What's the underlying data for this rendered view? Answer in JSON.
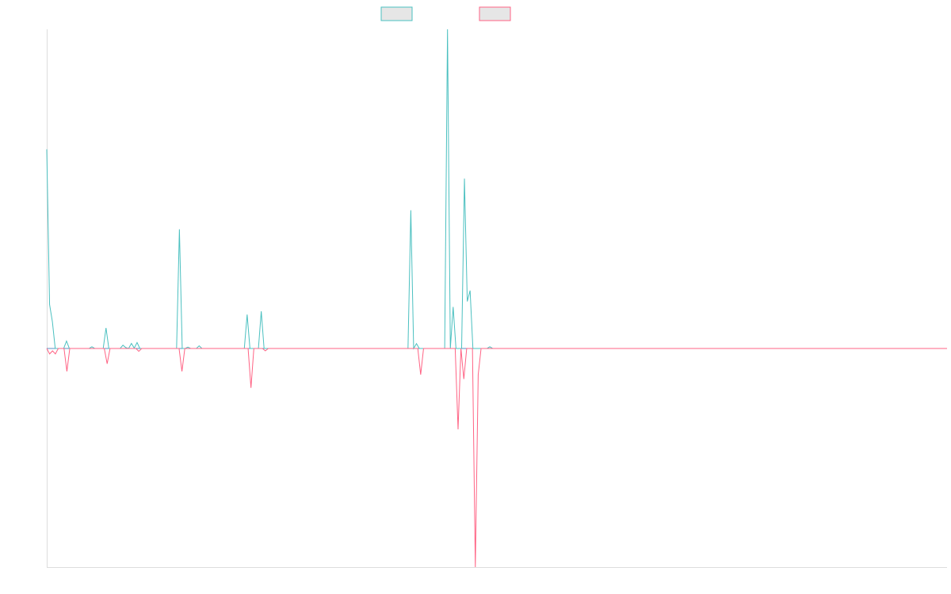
{
  "chart_data": {
    "type": "line",
    "title": "",
    "xlabel": "",
    "ylabel": "",
    "ylim": [
      -1,
      1.46
    ],
    "grid": false,
    "legend_position": "top-center",
    "colors": {
      "positive": "#4bc0c0",
      "negative": "#ff6384",
      "axis": "#dddddd",
      "baseline": "#5a8fc6",
      "legend_fill": "#e6e6e6"
    },
    "series": [
      {
        "values": [
          0.911,
          0.201,
          0.122,
          0,
          0,
          0,
          0,
          0.034,
          0,
          0,
          0,
          0,
          0,
          0,
          0,
          0,
          0.008,
          0,
          0,
          0,
          0,
          0.094,
          0,
          0,
          0,
          0,
          0,
          0.015,
          0.004,
          0,
          0.023,
          0.002,
          0.027,
          0,
          0,
          0,
          0,
          0,
          0,
          0,
          0,
          0,
          0,
          0,
          0,
          0,
          0,
          0.545,
          0,
          0,
          0.006,
          0,
          0,
          0,
          0.012,
          0,
          0,
          0,
          0,
          0,
          0,
          0,
          0,
          0,
          0,
          0,
          0,
          0,
          0,
          0,
          0,
          0.155,
          0,
          0,
          0,
          0,
          0.17,
          0,
          0,
          0,
          0,
          0,
          0,
          0,
          0,
          0,
          0,
          0,
          0,
          0,
          0,
          0,
          0,
          0,
          0,
          0,
          0,
          0,
          0,
          0,
          0,
          0,
          0,
          0,
          0,
          0,
          0,
          0,
          0,
          0,
          0,
          0,
          0,
          0,
          0,
          0,
          0,
          0,
          0,
          0,
          0,
          0,
          0,
          0,
          0,
          0,
          0,
          0,
          0,
          0.632,
          0,
          0.022,
          0,
          0,
          0,
          0,
          0,
          0,
          0,
          0,
          0,
          0,
          1.46,
          0,
          0.19,
          0,
          0,
          0,
          0.777,
          0.215,
          0.265,
          0,
          0,
          0,
          0,
          0,
          0,
          0.008,
          0,
          0,
          0,
          0,
          0,
          0,
          0,
          0,
          0,
          0,
          0,
          0,
          0,
          0,
          0,
          0,
          0,
          0,
          0,
          0,
          0,
          0,
          0,
          0,
          0,
          0,
          0,
          0,
          0,
          0,
          0,
          0,
          0,
          0,
          0,
          0,
          0,
          0,
          0,
          0,
          0,
          0,
          0,
          0,
          0,
          0,
          0,
          0,
          0,
          0,
          0,
          0,
          0,
          0,
          0,
          0,
          0,
          0,
          0,
          0,
          0,
          0,
          0,
          0,
          0,
          0,
          0,
          0,
          0,
          0,
          0,
          0,
          0,
          0,
          0,
          0,
          0,
          0,
          0,
          0,
          0,
          0,
          0,
          0,
          0,
          0,
          0,
          0,
          0,
          0,
          0,
          0,
          0,
          0,
          0,
          0,
          0,
          0,
          0,
          0,
          0,
          0,
          0,
          0,
          0,
          0,
          0,
          0,
          0,
          0,
          0,
          0,
          0,
          0,
          0,
          0,
          0,
          0,
          0,
          0,
          0,
          0,
          0,
          0,
          0,
          0,
          0,
          0,
          0,
          0,
          0,
          0,
          0,
          0,
          0,
          0,
          0,
          0,
          0,
          0,
          0,
          0,
          0,
          0,
          0,
          0,
          0,
          0,
          0,
          0,
          0,
          0,
          0,
          0,
          0,
          0,
          0,
          0,
          0,
          0,
          0,
          0
        ]
      },
      {
        "values": [
          0,
          -0.025,
          -0.011,
          -0.025,
          0,
          0,
          0,
          -0.105,
          0,
          0,
          0,
          0,
          0,
          0,
          0,
          0,
          0,
          0,
          0,
          0,
          0,
          -0.07,
          0,
          0,
          0,
          0,
          0,
          0,
          0,
          0,
          0,
          0,
          -0.013,
          0,
          0,
          0,
          0,
          0,
          0,
          0,
          0,
          0,
          0,
          0,
          0,
          0,
          0,
          -0.105,
          0,
          0,
          0,
          0,
          0,
          0,
          0,
          0,
          0,
          0,
          0,
          0,
          0,
          0,
          0,
          0,
          0,
          0,
          0,
          0,
          0,
          0,
          0,
          -0.18,
          0,
          0,
          0,
          0,
          -0.011,
          0,
          0,
          0,
          0,
          0,
          0,
          0,
          0,
          0,
          0,
          0,
          0,
          0,
          0,
          0,
          0,
          0,
          0,
          0,
          0,
          0,
          0,
          0,
          0,
          0,
          0,
          0,
          0,
          0,
          0,
          0,
          0,
          0,
          0,
          0,
          0,
          0,
          0,
          0,
          0,
          0,
          0,
          0,
          0,
          0,
          0,
          0,
          0,
          0,
          0,
          0,
          0,
          0,
          -0.12,
          0,
          0,
          0,
          0,
          0,
          0,
          0,
          0,
          0,
          0,
          0,
          0,
          -0.37,
          0,
          -0.14,
          0,
          0,
          0,
          -1.0,
          -0.12,
          0,
          0,
          0,
          0,
          0,
          0,
          0,
          0,
          0,
          0,
          0,
          0,
          0,
          0,
          0,
          0,
          0,
          0,
          0,
          0,
          0,
          0,
          0,
          0,
          0,
          0,
          0,
          0,
          0,
          0,
          0,
          0,
          0,
          0,
          0,
          0,
          0,
          0,
          0,
          0,
          0,
          0,
          0,
          0,
          0,
          0,
          0,
          0,
          0,
          0,
          0,
          0,
          0,
          0,
          0,
          0,
          0,
          0,
          0,
          0,
          0,
          0,
          0,
          0,
          0,
          0,
          0,
          0,
          0,
          0,
          0,
          0,
          0,
          0,
          0,
          0,
          0,
          0,
          0,
          0,
          0,
          0,
          0,
          0,
          0,
          0,
          0,
          0,
          0,
          0,
          0,
          0,
          0,
          0,
          0,
          0,
          0,
          0,
          0,
          0,
          0,
          0,
          0,
          0,
          0,
          0,
          0,
          0,
          0,
          0,
          0,
          0,
          0,
          0,
          0,
          0,
          0,
          0,
          0,
          0,
          0,
          0,
          0,
          0,
          0,
          0,
          0,
          0,
          0,
          0,
          0,
          0,
          0,
          0,
          0,
          0,
          0,
          0,
          0,
          0,
          0,
          0,
          0,
          0,
          0,
          0,
          0,
          0,
          0,
          0,
          0,
          0,
          0,
          0,
          0,
          0,
          0,
          0,
          0,
          0,
          0,
          0,
          0
        ]
      }
    ]
  }
}
